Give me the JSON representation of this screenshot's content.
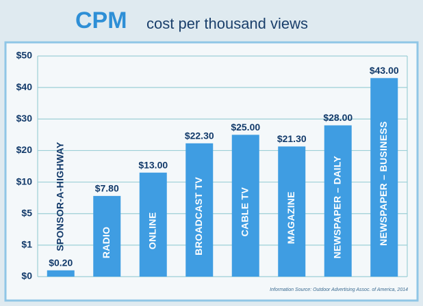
{
  "chart_data": {
    "type": "bar",
    "title": "CPM",
    "subtitle": "cost per thousand views",
    "categories": [
      "SPONSOR-A-HIGHWAY",
      "RADIO",
      "ONLINE",
      "BROADCAST TV",
      "CABLE TV",
      "MAGAZINE",
      "NEWSPAPER – DAILY",
      "NEWSPAPER – BUSINESS"
    ],
    "values": [
      0.2,
      7.8,
      13,
      22.3,
      25,
      21.3,
      28,
      43
    ],
    "value_labels": [
      "$0.20",
      "$7.80",
      "$13.00",
      "$22.30",
      "$25.00",
      "$21.30",
      "$28.00",
      "$43.00"
    ],
    "color": "#3f9de2",
    "ylim": [
      0,
      50
    ],
    "yticks": [
      {
        "value": 0,
        "label": "$0"
      },
      {
        "value": 1,
        "label": "$1"
      },
      {
        "value": 5,
        "label": "$5"
      },
      {
        "value": 10,
        "label": "$10"
      },
      {
        "value": 20,
        "label": "$20"
      },
      {
        "value": 30,
        "label": "$30"
      },
      {
        "value": 40,
        "label": "$40"
      },
      {
        "value": 50,
        "label": "$50"
      }
    ],
    "grid": true,
    "source": "Information Source: Outdoor Advertising Assoc. of America, 2014"
  }
}
